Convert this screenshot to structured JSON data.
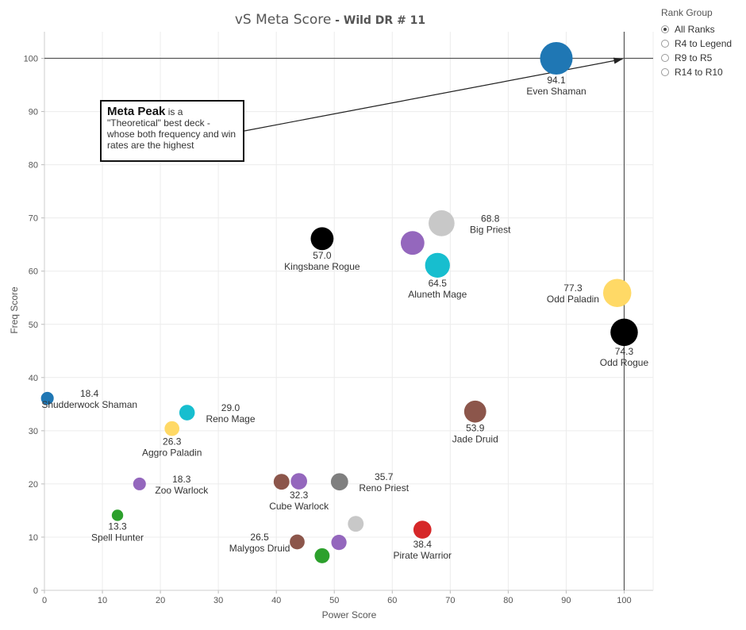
{
  "title": "vS Meta Score",
  "subtitle": " - Wild DR # 11",
  "annotation": {
    "heading": "Meta Peak",
    "text": " is a \"Theoretical\" best deck - whose both frequency and win rates are the highest"
  },
  "legend": {
    "title": "Rank Group",
    "options": [
      {
        "label": "All Ranks",
        "selected": true
      },
      {
        "label": "R4 to Legend",
        "selected": false
      },
      {
        "label": "R9 to R5",
        "selected": false
      },
      {
        "label": "R14 to R10",
        "selected": false
      }
    ]
  },
  "chart_data": {
    "type": "scatter",
    "title": "vS Meta Score",
    "subtitle": " - Wild DR # 11",
    "xlabel": "Power Score",
    "ylabel": "Freq Score",
    "xlim": [
      0,
      105
    ],
    "ylim": [
      0,
      105
    ],
    "xticks": [
      0,
      10,
      20,
      30,
      40,
      50,
      60,
      70,
      80,
      90,
      100
    ],
    "yticks": [
      0,
      10,
      20,
      30,
      40,
      50,
      60,
      70,
      80,
      90,
      100
    ],
    "grid": true,
    "reference_lines": {
      "x": 100,
      "y": 100
    },
    "points": [
      {
        "x": 88.3,
        "y": 100.0,
        "size": 94.1,
        "value": "94.1",
        "name": "Even Shaman",
        "color": "#1f77b4",
        "label_pos": "below"
      },
      {
        "x": 100.0,
        "y": 48.5,
        "size": 74.3,
        "value": "74.3",
        "name": "Odd Rogue",
        "color": "#000000",
        "label_pos": "below"
      },
      {
        "x": 98.8,
        "y": 55.9,
        "size": 77.3,
        "value": "77.3",
        "name": "Odd Paladin",
        "color": "#ffd966",
        "label_pos": "left"
      },
      {
        "x": 68.5,
        "y": 69.0,
        "size": 68.8,
        "value": "68.8",
        "name": "Big Priest",
        "color": "#c8c8c8",
        "label_pos": "right"
      },
      {
        "x": 63.5,
        "y": 65.3,
        "size": 60.0,
        "value": "",
        "name": "",
        "color": "#9467bd",
        "label_pos": "none"
      },
      {
        "x": 67.8,
        "y": 61.1,
        "size": 64.5,
        "value": "64.5",
        "name": "Aluneth Mage",
        "color": "#17becf",
        "label_pos": "below"
      },
      {
        "x": 47.9,
        "y": 66.1,
        "size": 57.0,
        "value": "57.0",
        "name": "Kingsbane Rogue",
        "color": "#000000",
        "label_pos": "below"
      },
      {
        "x": 74.3,
        "y": 33.6,
        "size": 53.9,
        "value": "53.9",
        "name": "Jade Druid",
        "color": "#8c564b",
        "label_pos": "below"
      },
      {
        "x": 0.5,
        "y": 36.1,
        "size": 18.4,
        "value": "18.4",
        "name": "Shudderwock Shaman",
        "color": "#1f77b4",
        "label_pos": "right"
      },
      {
        "x": 24.6,
        "y": 33.4,
        "size": 29.0,
        "value": "29.0",
        "name": "Reno Mage",
        "color": "#17becf",
        "label_pos": "right"
      },
      {
        "x": 22.0,
        "y": 30.4,
        "size": 26.3,
        "value": "26.3",
        "name": "Aggro Paladin",
        "color": "#ffd966",
        "label_pos": "below"
      },
      {
        "x": 16.4,
        "y": 20.0,
        "size": 18.3,
        "value": "18.3",
        "name": "Zoo Warlock",
        "color": "#9467bd",
        "label_pos": "right"
      },
      {
        "x": 12.6,
        "y": 14.1,
        "size": 13.3,
        "value": "13.3",
        "name": "Spell Hunter",
        "color": "#2ca02c",
        "label_pos": "below"
      },
      {
        "x": 40.9,
        "y": 20.4,
        "size": 30.0,
        "value": "",
        "name": "",
        "color": "#8c564b",
        "label_pos": "none"
      },
      {
        "x": 43.9,
        "y": 20.5,
        "size": 32.3,
        "value": "32.3",
        "name": "Cube Warlock",
        "color": "#9467bd",
        "label_pos": "below"
      },
      {
        "x": 50.9,
        "y": 20.4,
        "size": 35.7,
        "value": "35.7",
        "name": "Reno Priest",
        "color": "#7f7f7f",
        "label_pos": "right"
      },
      {
        "x": 53.7,
        "y": 12.5,
        "size": 30.0,
        "value": "",
        "name": "",
        "color": "#c8c8c8",
        "label_pos": "none"
      },
      {
        "x": 50.8,
        "y": 9.0,
        "size": 28.0,
        "value": "",
        "name": "",
        "color": "#9467bd",
        "label_pos": "none"
      },
      {
        "x": 43.6,
        "y": 9.1,
        "size": 26.5,
        "value": "26.5",
        "name": "Malygos Druid",
        "color": "#8c564b",
        "label_pos": "left"
      },
      {
        "x": 47.9,
        "y": 6.5,
        "size": 27.0,
        "value": "",
        "name": "",
        "color": "#2ca02c",
        "label_pos": "none"
      },
      {
        "x": 65.2,
        "y": 11.4,
        "size": 38.4,
        "value": "38.4",
        "name": "Pirate Warrior",
        "color": "#d62728",
        "label_pos": "below"
      }
    ]
  }
}
